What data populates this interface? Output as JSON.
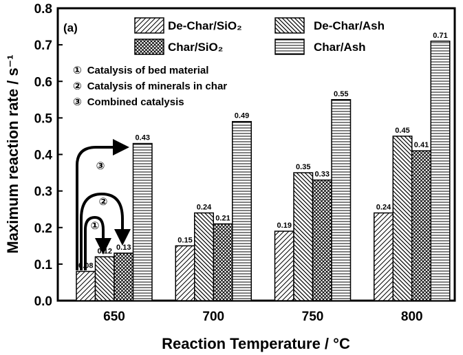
{
  "chart_data": {
    "type": "bar",
    "panel_label": "(a)",
    "categories": [
      "650",
      "700",
      "750",
      "800"
    ],
    "series": [
      {
        "name": "De-Char/SiO₂",
        "pattern": "hatch-fwd",
        "values": [
          0.08,
          0.15,
          0.19,
          0.24
        ]
      },
      {
        "name": "De-Char/Ash",
        "pattern": "hatch-back",
        "values": [
          0.12,
          0.24,
          0.35,
          0.45
        ]
      },
      {
        "name": "Char/SiO₂",
        "pattern": "crosshatch",
        "values": [
          0.13,
          0.21,
          0.33,
          0.41
        ]
      },
      {
        "name": "Char/Ash",
        "pattern": "hlines",
        "values": [
          0.43,
          0.49,
          0.55,
          0.71
        ]
      }
    ],
    "data_labels": [
      [
        "0.08",
        "0.15",
        "0.19",
        "0.24"
      ],
      [
        "0.12",
        "0.24",
        "0.35",
        "0.45"
      ],
      [
        "0.13",
        "0.21",
        "0.33",
        "0.41"
      ],
      [
        "0.43",
        "0.49",
        "0.55",
        "0.71"
      ]
    ],
    "xlabel": "Reaction Temperature / °C",
    "ylabel": "Maximum reaction rate / s⁻¹",
    "ylim": [
      0,
      0.8
    ],
    "yticks": [
      "0.0",
      "0.1",
      "0.2",
      "0.3",
      "0.4",
      "0.5",
      "0.6",
      "0.7",
      "0.8"
    ],
    "grid": false,
    "legend_position": "top-right",
    "annotations": [
      {
        "symbol": "①",
        "text": "Catalysis of bed material"
      },
      {
        "symbol": "②",
        "text": "Catalysis of minerals in char"
      },
      {
        "symbol": "③",
        "text": "Combined catalysis"
      }
    ],
    "colors": {
      "bar_fill": "#ffffff",
      "stroke": "#000000"
    }
  }
}
